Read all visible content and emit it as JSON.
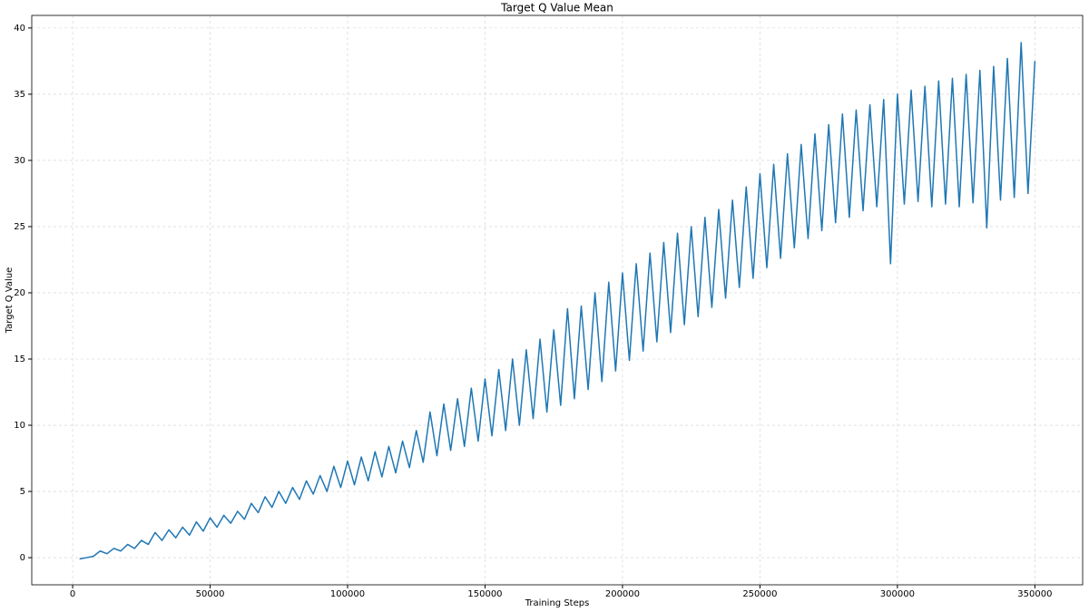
{
  "chart_data": {
    "type": "line",
    "title": "Target Q Value Mean",
    "x_label": "Training Steps",
    "y_label": "Target Q Value",
    "x": [
      2500,
      5000,
      7500,
      10000,
      12500,
      15000,
      17500,
      20000,
      22500,
      25000,
      27500,
      30000,
      32500,
      35000,
      37500,
      40000,
      42500,
      45000,
      47500,
      50000,
      52500,
      55000,
      57500,
      60000,
      62500,
      65000,
      67500,
      70000,
      72500,
      75000,
      77500,
      80000,
      82500,
      85000,
      87500,
      90000,
      92500,
      95000,
      97500,
      100000,
      102500,
      105000,
      107500,
      110000,
      112500,
      115000,
      117500,
      120000,
      122500,
      125000,
      127500,
      130000,
      132500,
      135000,
      137500,
      140000,
      142500,
      145000,
      147500,
      150000,
      152500,
      155000,
      157500,
      160000,
      162500,
      165000,
      167500,
      170000,
      172500,
      175000,
      177500,
      180000,
      182500,
      185000,
      187500,
      190000,
      192500,
      195000,
      197500,
      200000,
      202500,
      205000,
      207500,
      210000,
      212500,
      215000,
      217500,
      220000,
      222500,
      225000,
      227500,
      230000,
      232500,
      235000,
      237500,
      240000,
      242500,
      245000,
      247500,
      250000,
      252500,
      255000,
      257500,
      260000,
      262500,
      265000,
      267500,
      270000,
      272500,
      275000,
      277500,
      280000,
      282500,
      285000,
      287500,
      290000,
      292500,
      295000,
      297500,
      300000,
      302500,
      305000,
      307500,
      310000,
      312500,
      315000,
      317500,
      320000,
      322500,
      325000,
      327500,
      330000,
      332500,
      335000,
      337500,
      340000,
      342500,
      345000,
      347500,
      350000
    ],
    "series": [
      {
        "name": "Target Q Value Mean",
        "color": "#1f77b4",
        "values": [
          -0.1,
          0.0,
          0.1,
          0.5,
          0.3,
          0.7,
          0.5,
          1.0,
          0.7,
          1.3,
          1.0,
          1.9,
          1.3,
          2.1,
          1.5,
          2.3,
          1.7,
          2.7,
          2.0,
          3.0,
          2.3,
          3.2,
          2.6,
          3.5,
          2.9,
          4.1,
          3.4,
          4.6,
          3.8,
          5.0,
          4.1,
          5.3,
          4.4,
          5.8,
          4.8,
          6.2,
          5.0,
          6.9,
          5.3,
          7.3,
          5.5,
          7.6,
          5.8,
          8.0,
          6.1,
          8.4,
          6.4,
          8.8,
          6.8,
          9.6,
          7.2,
          11.0,
          7.7,
          11.6,
          8.1,
          12.0,
          8.4,
          12.8,
          8.8,
          13.5,
          9.2,
          14.2,
          9.6,
          15.0,
          10.0,
          15.7,
          10.5,
          16.5,
          11.0,
          17.2,
          11.5,
          18.8,
          12.0,
          19.0,
          12.7,
          20.0,
          13.3,
          20.8,
          14.1,
          21.5,
          14.9,
          22.2,
          15.6,
          23.0,
          16.3,
          23.8,
          17.0,
          24.5,
          17.6,
          25.0,
          18.2,
          25.7,
          18.9,
          26.3,
          19.6,
          27.0,
          20.4,
          28.0,
          21.1,
          29.0,
          21.9,
          29.7,
          22.6,
          30.5,
          23.4,
          31.2,
          24.1,
          32.0,
          24.7,
          32.7,
          25.3,
          33.5,
          25.7,
          33.8,
          26.2,
          34.2,
          26.5,
          34.6,
          22.2,
          35.0,
          26.7,
          35.3,
          26.9,
          35.6,
          26.5,
          36.0,
          26.7,
          36.2,
          26.5,
          36.5,
          26.8,
          36.8,
          24.9,
          37.1,
          27.0,
          37.7,
          27.2,
          38.9,
          27.5,
          37.5
        ]
      }
    ],
    "xlim": [
      -14875,
      367375
    ],
    "ylim": [
      -2.05,
      40.95
    ],
    "xticks": [
      0,
      50000,
      100000,
      150000,
      200000,
      250000,
      300000,
      350000
    ],
    "yticks": [
      0,
      5,
      10,
      15,
      20,
      25,
      30,
      35,
      40
    ],
    "grid": true
  }
}
